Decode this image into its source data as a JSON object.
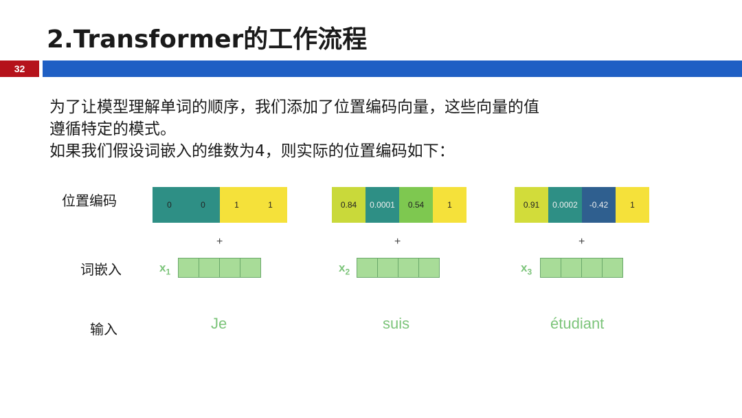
{
  "slide": {
    "title": "2.Transformer的工作流程",
    "page_number": "32",
    "body_lines": [
      "为了让模型理解单词的顺序，我们添加了位置编码向量，这些向量的值",
      "遵循特定的模式。",
      "如果我们假设词嵌入的维数为4，则实际的位置编码如下："
    ]
  },
  "labels": {
    "positional_encoding": "位置编码",
    "word_embedding": "词嵌入",
    "input": "输入"
  },
  "plus_sign": "+",
  "tokens": [
    {
      "word": "Je",
      "x_label": "x",
      "x_sub": "1",
      "encoding": [
        {
          "value": "0",
          "color": "#2e8f85"
        },
        {
          "value": "0",
          "color": "#2e8f85"
        },
        {
          "value": "1",
          "color": "#f5e13a"
        },
        {
          "value": "1",
          "color": "#f5e13a"
        }
      ]
    },
    {
      "word": "suis",
      "x_label": "x",
      "x_sub": "2",
      "encoding": [
        {
          "value": "0.84",
          "color": "#c9d93a"
        },
        {
          "value": "0.0001",
          "color": "#2e8f85"
        },
        {
          "value": "0.54",
          "color": "#7ec850"
        },
        {
          "value": "1",
          "color": "#f5e13a"
        }
      ]
    },
    {
      "word": "étudiant",
      "x_label": "x",
      "x_sub": "3",
      "encoding": [
        {
          "value": "0.91",
          "color": "#d2dc3a"
        },
        {
          "value": "0.0002",
          "color": "#2e8f85"
        },
        {
          "value": "-0.42",
          "color": "#2f5f8f"
        },
        {
          "value": "1",
          "color": "#f5e13a"
        }
      ]
    }
  ],
  "colors": {
    "accent_red": "#b5121b",
    "accent_blue": "#1f5fc4",
    "embedding_green": "#a8dc98",
    "label_green": "#7cc47a"
  }
}
